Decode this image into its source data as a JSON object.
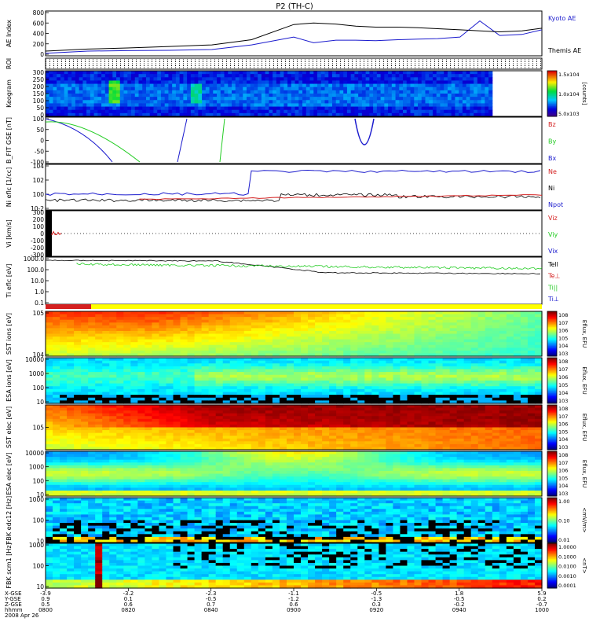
{
  "title": "P2 (TH-C)",
  "colors": {
    "blue": "#1a1acd",
    "red": "#d42020",
    "green": "#22cc22",
    "black": "#000000"
  },
  "chart_data": [
    {
      "type": "line",
      "ylabel": "AE Index",
      "yticks": [
        "800",
        "600",
        "400",
        "200",
        "0"
      ],
      "ylim": [
        0,
        800
      ],
      "series": [
        {
          "name": "Kyoto AE",
          "color": "blue",
          "x_hours": [
            0.0,
            0.17,
            0.33,
            0.5,
            0.67,
            0.83,
            1.0,
            1.08,
            1.17,
            1.25,
            1.33,
            1.42,
            1.5,
            1.58,
            1.67,
            1.75,
            1.83,
            1.92,
            2.0
          ],
          "y": [
            20,
            60,
            70,
            75,
            90,
            180,
            330,
            220,
            270,
            270,
            260,
            280,
            290,
            300,
            330,
            640,
            360,
            380,
            470
          ]
        },
        {
          "name": "Themis AE",
          "color": "black",
          "x_hours": [
            0.0,
            0.17,
            0.33,
            0.5,
            0.67,
            0.83,
            1.0,
            1.08,
            1.17,
            1.25,
            1.33,
            1.42,
            1.5,
            1.58,
            1.67,
            1.75,
            1.83,
            1.92,
            2.0
          ],
          "y": [
            60,
            100,
            120,
            150,
            180,
            280,
            570,
            600,
            580,
            540,
            520,
            520,
            510,
            490,
            470,
            450,
            430,
            450,
            500
          ]
        }
      ]
    },
    {
      "type": "table",
      "ylabel": "ROI",
      "rows": 5
    },
    {
      "type": "heatmap",
      "ylabel": "Keogram",
      "yticks": [
        "300",
        "250",
        "200",
        "150",
        "100",
        "50",
        "0"
      ],
      "colorbar_label": "[counts]",
      "colorbar_ticks": [
        "1.5x10^4",
        "1.0x10^4",
        "5.0x10^3"
      ]
    },
    {
      "type": "line",
      "ylabel": "B_FIT GSE [nT]",
      "yticks": [
        "100",
        "50",
        "0",
        "-50",
        "-100"
      ],
      "ylim": [
        -100,
        100
      ],
      "series": [
        {
          "name": "Bz",
          "color": "red"
        },
        {
          "name": "By",
          "color": "green"
        },
        {
          "name": "Bx",
          "color": "blue"
        }
      ]
    },
    {
      "type": "line",
      "ylabel": "Ni eflc [1/cc]",
      "yticks": [
        "10^4",
        "10^2",
        "10^0",
        "10^-2"
      ],
      "series": [
        {
          "name": "Ne",
          "color": "red"
        },
        {
          "name": "Ni",
          "color": "black"
        },
        {
          "name": "Npot",
          "color": "blue"
        }
      ]
    },
    {
      "type": "line",
      "ylabel": "Vi [km/s]",
      "yticks": [
        "300",
        "200",
        "100",
        "0",
        "-100",
        "-200",
        "-300"
      ],
      "ylim": [
        -300,
        300
      ],
      "series": [
        {
          "name": "Viz",
          "color": "red"
        },
        {
          "name": "Viy",
          "color": "green"
        },
        {
          "name": "Vix",
          "color": "blue"
        }
      ]
    },
    {
      "type": "line",
      "ylabel": "Ti eflc [eV]",
      "yticks": [
        "1000.0",
        "100.0",
        "10.0",
        "1.0",
        "0.1"
      ],
      "series": [
        {
          "name": "Tell",
          "color": "black"
        },
        {
          "name": "Te⊥",
          "color": "red"
        },
        {
          "name": "Ti||",
          "color": "green"
        },
        {
          "name": "Ti⊥",
          "color": "blue"
        }
      ]
    },
    {
      "type": "heatmap",
      "ylabel": "SST ions [eV]",
      "yticks": [
        "10^5",
        "10^4"
      ],
      "colorbar_label": "Eflux, EFU",
      "colorbar_ticks": [
        "10^8",
        "10^7",
        "10^6",
        "10^5",
        "10^4",
        "10^3"
      ]
    },
    {
      "type": "heatmap",
      "ylabel": "ESA ions [eV]",
      "yticks": [
        "10000",
        "1000",
        "100",
        "10"
      ],
      "colorbar_label": "Eflux, EFU",
      "colorbar_ticks": [
        "10^8",
        "10^7",
        "10^6",
        "10^5",
        "10^4",
        "10^3"
      ]
    },
    {
      "type": "heatmap",
      "ylabel": "SST elec [eV]",
      "yticks": [
        "10^5"
      ],
      "colorbar_label": "Eflux, EFU",
      "colorbar_ticks": [
        "10^8",
        "10^7",
        "10^6",
        "10^5",
        "10^4",
        "10^3"
      ]
    },
    {
      "type": "heatmap",
      "ylabel": "ESA elec [eV]",
      "yticks": [
        "10000",
        "1000",
        "100",
        "10"
      ],
      "colorbar_label": "Eflux, EFU",
      "colorbar_ticks": [
        "10^8",
        "10^7",
        "10^6",
        "10^5",
        "10^4",
        "10^3"
      ]
    },
    {
      "type": "heatmap",
      "ylabel": "FBK edc12 [Hz]",
      "yticks": [
        "1000",
        "100",
        "10"
      ],
      "colorbar_label": "<mV/m>",
      "colorbar_ticks": [
        "1.00",
        "0.10",
        "0.01"
      ]
    },
    {
      "type": "heatmap",
      "ylabel": "FBK scm1 [Hz]",
      "yticks": [
        "1000",
        "100",
        "10"
      ],
      "colorbar_label": "<nT>",
      "colorbar_ticks": [
        "1.0000",
        "0.1000",
        "0.0100",
        "0.0010",
        "0.0001"
      ]
    }
  ],
  "x_axis": {
    "row_labels": [
      "X-GSE",
      "Y-GSE",
      "Z-GSE",
      "hhmm",
      "2008 Apr 26"
    ],
    "ticks": [
      {
        "x": "-3.9",
        "y": "0.9",
        "z": "0.5",
        "time": "0800"
      },
      {
        "x": "-3.2",
        "y": "0.1",
        "z": "0.6",
        "time": "0820"
      },
      {
        "x": "-2.3",
        "y": "-0.5",
        "z": "0.7",
        "time": "0840"
      },
      {
        "x": "-1.1",
        "y": "-1.2",
        "z": "0.6",
        "time": "0900"
      },
      {
        "x": "-0.5",
        "y": "-1.3",
        "z": "0.3",
        "time": "0920"
      },
      {
        "x": "1.8",
        "y": "-0.5",
        "z": "-0.2",
        "time": "0940"
      },
      {
        "x": "5.9",
        "y": "0.2",
        "z": "-0.7",
        "time": "1000"
      }
    ]
  }
}
